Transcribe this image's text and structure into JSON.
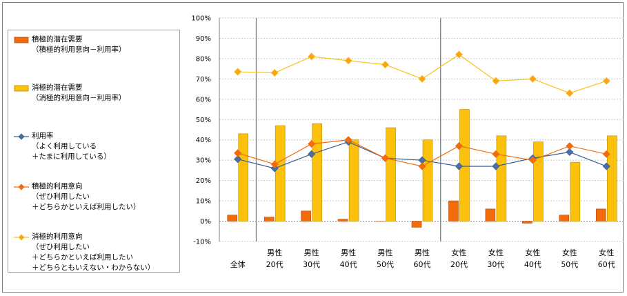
{
  "chart_data": {
    "type": "bar+line",
    "categories": [
      {
        "line1": "",
        "line2": "全体"
      },
      {
        "line1": "男性",
        "line2": "20代"
      },
      {
        "line1": "男性",
        "line2": "30代"
      },
      {
        "line1": "男性",
        "line2": "40代"
      },
      {
        "line1": "男性",
        "line2": "50代"
      },
      {
        "line1": "男性",
        "line2": "60代"
      },
      {
        "line1": "女性",
        "line2": "20代"
      },
      {
        "line1": "女性",
        "line2": "30代"
      },
      {
        "line1": "女性",
        "line2": "40代"
      },
      {
        "line1": "女性",
        "line2": "50代"
      },
      {
        "line1": "女性",
        "line2": "60代"
      }
    ],
    "ylim": [
      -10,
      100
    ],
    "yticks": [
      -10,
      0,
      10,
      20,
      30,
      40,
      50,
      60,
      70,
      80,
      90,
      100
    ],
    "ytick_labels": [
      "-10%",
      "0%",
      "10%",
      "20%",
      "30%",
      "40%",
      "50%",
      "60%",
      "70%",
      "80%",
      "90%",
      "100%"
    ],
    "group_dividers_after": [
      0,
      5
    ],
    "series": [
      {
        "key": "active_latent",
        "kind": "bar",
        "color": "#f36c0c",
        "stroke": "#b8450a",
        "legend": [
          "積極的潜在需要",
          "（積極的利用意向－利用率）"
        ],
        "values": [
          3,
          2,
          5,
          1,
          0,
          -3,
          10,
          6,
          -1,
          3,
          6
        ]
      },
      {
        "key": "passive_latent",
        "kind": "bar",
        "color": "#fcc10c",
        "stroke": "#b88a00",
        "legend": [
          "消極的潜在需要",
          "（消極的利用意向－利用率）"
        ],
        "values": [
          43,
          47,
          48,
          40,
          46,
          40,
          55,
          42,
          39,
          29,
          42
        ]
      },
      {
        "key": "usage_rate",
        "kind": "line",
        "color": "#3a5f95",
        "fill": "#4a6fa5",
        "legend": [
          "利用率",
          "（よく利用している",
          "＋たまに利用している）"
        ],
        "values": [
          30.5,
          26,
          33,
          39,
          31,
          30,
          27,
          27,
          31,
          34,
          27
        ]
      },
      {
        "key": "active_intent",
        "kind": "line",
        "color": "#f36c0c",
        "fill": "#f36c0c",
        "legend": [
          "積極的利用意向",
          "（ぜひ利用したい",
          "＋どちらかといえば利用したい）"
        ],
        "values": [
          33.5,
          28,
          38,
          40,
          31,
          27,
          37,
          33,
          30,
          37,
          33
        ]
      },
      {
        "key": "passive_intent",
        "kind": "line",
        "color": "#f7c21a",
        "fill": "#f9a31a",
        "legend": [
          "消極的利用意向",
          "（ぜひ利用したい",
          "＋どちらかといえば利用したい",
          "＋どちらともいえない・わからない）"
        ],
        "values": [
          73.5,
          73,
          81,
          79,
          77,
          70,
          82,
          69,
          70,
          63,
          69
        ]
      }
    ]
  }
}
